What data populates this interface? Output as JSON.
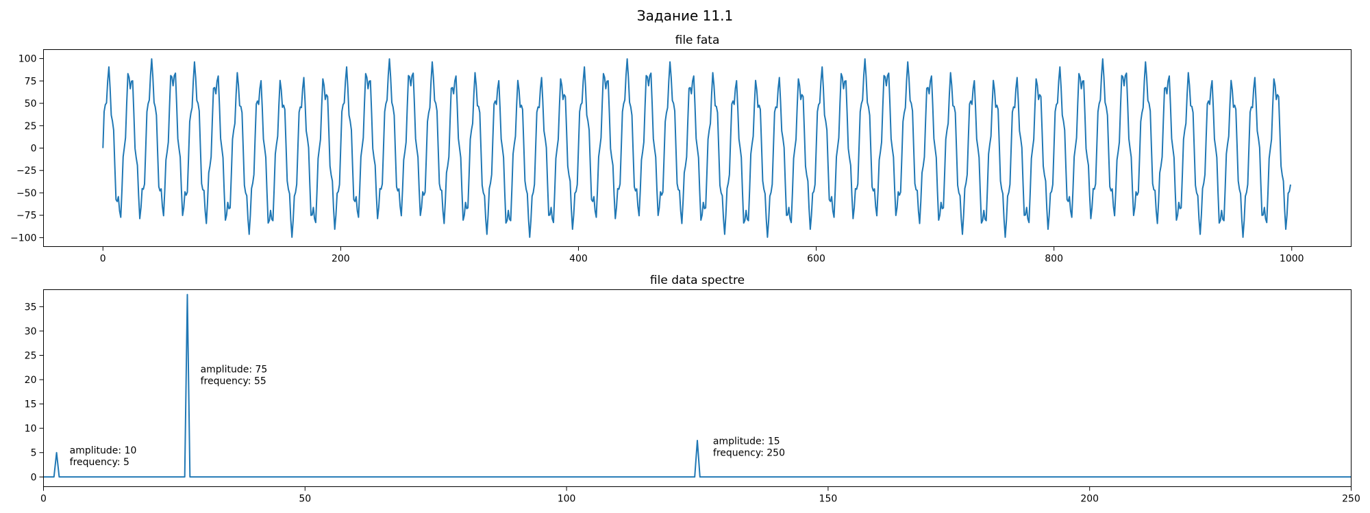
{
  "figure": {
    "suptitle": "Задание 11.1"
  },
  "colors": {
    "series": "#1f77b4",
    "axes": "#000000",
    "background": "#ffffff"
  },
  "chart_data": [
    {
      "type": "line",
      "title": "file fata",
      "xlabel": "",
      "ylabel": "",
      "xlim": [
        -50,
        1050
      ],
      "ylim": [
        -110,
        110
      ],
      "xticks": [
        0,
        200,
        400,
        600,
        800,
        1000
      ],
      "yticks": [
        -100,
        -75,
        -50,
        -25,
        0,
        25,
        50,
        75,
        100
      ],
      "grid": false,
      "series": [
        {
          "generator": "sum_of_sines",
          "x_start": 0,
          "x_end": 999,
          "sample_rate": 1000,
          "components": [
            {
              "amplitude": 10,
              "frequency": 5
            },
            {
              "amplitude": 75,
              "frequency": 55
            },
            {
              "amplitude": 15,
              "frequency": 250
            }
          ]
        }
      ]
    },
    {
      "type": "line",
      "title": "file data spectre",
      "xlabel": "",
      "ylabel": "",
      "xlim": [
        0,
        250
      ],
      "ylim": [
        -2,
        38.5
      ],
      "xticks": [
        0,
        50,
        100,
        150,
        200,
        250
      ],
      "yticks": [
        0,
        5,
        10,
        15,
        20,
        25,
        30,
        35
      ],
      "grid": false,
      "peaks": [
        {
          "x": 2.5,
          "y": 5
        },
        {
          "x": 27.5,
          "y": 37.5
        },
        {
          "x": 125,
          "y": 7.5
        }
      ],
      "x_max": 250,
      "annotations": [
        {
          "x": 5,
          "y": 4.8,
          "line1": "amplitude: 10",
          "line2": "frequency: 5"
        },
        {
          "x": 30,
          "y": 21.5,
          "line1": "amplitude: 75",
          "line2": "frequency: 55"
        },
        {
          "x": 128,
          "y": 6.7,
          "line1": "amplitude: 15",
          "line2": "frequency: 250"
        }
      ]
    }
  ]
}
